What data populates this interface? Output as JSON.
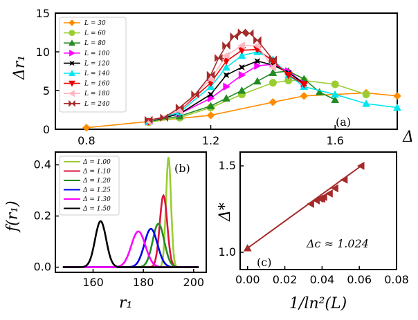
{
  "chart_data": [
    {
      "panel": "(a)",
      "type": "line",
      "xlabel": "Δ",
      "ylabel": "Δr₁",
      "xlim": [
        0.7,
        1.8
      ],
      "ylim": [
        0,
        15
      ],
      "xticks": [
        "0.8",
        "1.2",
        "1.6"
      ],
      "yticks": [
        "0",
        "5",
        "10",
        "15"
      ],
      "legend_position": "top-left",
      "series": [
        {
          "name": "L = 30",
          "color": "#ff8c00",
          "marker": "diamond",
          "x": [
            0.8,
            1.0,
            1.2,
            1.4,
            1.5,
            1.7,
            1.8
          ],
          "y": [
            0.2,
            1.0,
            1.8,
            3.5,
            4.3,
            4.7,
            4.3
          ]
        },
        {
          "name": "L = 60",
          "color": "#9acd32",
          "marker": "circle",
          "x": [
            1.0,
            1.1,
            1.2,
            1.3,
            1.4,
            1.45,
            1.5,
            1.6,
            1.7
          ],
          "y": [
            0.9,
            1.5,
            2.8,
            4.5,
            6.0,
            6.3,
            6.3,
            5.8,
            4.5
          ]
        },
        {
          "name": "L = 80",
          "color": "#228b22",
          "marker": "triangle-up",
          "x": [
            1.0,
            1.1,
            1.2,
            1.25,
            1.3,
            1.35,
            1.4,
            1.45,
            1.5,
            1.55,
            1.6
          ],
          "y": [
            1.0,
            1.7,
            3.0,
            4.0,
            5.0,
            6.2,
            7.3,
            7.5,
            6.5,
            4.8,
            3.8
          ]
        },
        {
          "name": "L = 100",
          "color": "#ff00ff",
          "marker": "triangle-right",
          "x": [
            1.0,
            1.1,
            1.2,
            1.25,
            1.3,
            1.35,
            1.4,
            1.45,
            1.5
          ],
          "y": [
            1.0,
            2.0,
            4.0,
            5.5,
            7.0,
            8.2,
            8.4,
            7.5,
            5.9
          ]
        },
        {
          "name": "L = 120",
          "color": "#000000",
          "marker": "star",
          "x": [
            1.0,
            1.1,
            1.2,
            1.25,
            1.3,
            1.35,
            1.4,
            1.45,
            1.5
          ],
          "y": [
            1.0,
            2.0,
            4.5,
            7.0,
            8.0,
            8.8,
            8.3,
            7.3,
            5.9
          ]
        },
        {
          "name": "L = 140",
          "color": "#00e5ee",
          "marker": "triangle-up",
          "x": [
            1.0,
            1.1,
            1.2,
            1.25,
            1.3,
            1.35,
            1.4,
            1.45,
            1.5,
            1.6,
            1.7,
            1.8
          ],
          "y": [
            1.0,
            2.2,
            5.5,
            8.0,
            9.5,
            10.0,
            9.0,
            7.0,
            5.5,
            4.5,
            3.3,
            2.8
          ]
        },
        {
          "name": "L = 160",
          "color": "#ee0000",
          "marker": "triangle-down",
          "x": [
            1.0,
            1.1,
            1.2,
            1.25,
            1.3,
            1.35,
            1.4,
            1.45,
            1.5
          ],
          "y": [
            1.0,
            2.4,
            6.0,
            8.8,
            10.2,
            10.3,
            8.8,
            7.0,
            5.8
          ]
        },
        {
          "name": "L = 180",
          "color": "#ffb6c1",
          "marker": "triangle-left",
          "x": [
            1.0,
            1.1,
            1.2,
            1.25,
            1.3,
            1.35,
            1.4
          ],
          "y": [
            1.0,
            2.4,
            6.5,
            9.5,
            10.8,
            10.8,
            8.0
          ]
        },
        {
          "name": "L = 240",
          "color": "#a52a2a",
          "marker": "bowtie",
          "x": [
            1.0,
            1.05,
            1.1,
            1.15,
            1.2,
            1.225,
            1.25,
            1.275,
            1.3,
            1.325,
            1.35,
            1.4
          ],
          "y": [
            1.2,
            1.5,
            2.8,
            4.5,
            7.0,
            9.2,
            10.8,
            12.0,
            12.5,
            12.4,
            11.5,
            9.0
          ]
        }
      ]
    },
    {
      "panel": "(b)",
      "type": "line",
      "xlabel": "r₁",
      "ylabel": "f(r₁)",
      "xlim": [
        145,
        205
      ],
      "ylim": [
        -0.02,
        0.45
      ],
      "xticks": [
        "160",
        "180",
        "200"
      ],
      "yticks": [
        "0.0",
        "0.2",
        "0.4"
      ],
      "legend_position": "top-left",
      "series": [
        {
          "name": "Δ = 1.00",
          "color": "#9acd32",
          "mean": 190,
          "peak": 0.43,
          "sigma": 1.0
        },
        {
          "name": "Δ = 1.10",
          "color": "#dc143c",
          "mean": 188,
          "peak": 0.28,
          "sigma": 1.5
        },
        {
          "name": "Δ = 1.20",
          "color": "#228b22",
          "mean": 186,
          "peak": 0.17,
          "sigma": 2.3
        },
        {
          "name": "Δ = 1.25",
          "color": "#0000ee",
          "mean": 183,
          "peak": 0.15,
          "sigma": 2.6
        },
        {
          "name": "Δ = 1.30",
          "color": "#ff00ff",
          "mean": 178,
          "peak": 0.14,
          "sigma": 2.8
        },
        {
          "name": "Δ = 1.50",
          "color": "#000000",
          "mean": 163,
          "peak": 0.18,
          "sigma": 2.2
        }
      ]
    },
    {
      "panel": "(c)",
      "type": "scatter",
      "xlabel": "1/ln²(L)",
      "ylabel": "Δ*",
      "xlim": [
        -0.004,
        0.08
      ],
      "ylim": [
        0.9,
        1.58
      ],
      "xticks": [
        "0.00",
        "0.02",
        "0.04",
        "0.06",
        "0.08"
      ],
      "yticks": [
        "1.0",
        "1.5"
      ],
      "annotation": "Δc ≈ 1.024",
      "points": {
        "x": [
          0.0,
          0.034,
          0.037,
          0.039,
          0.04,
          0.041,
          0.044,
          0.047,
          0.052,
          0.061
        ],
        "y": [
          1.024,
          1.28,
          1.3,
          1.31,
          1.31,
          1.32,
          1.34,
          1.37,
          1.42,
          1.5
        ]
      },
      "fit": {
        "x": [
          0.0,
          0.061
        ],
        "y": [
          1.024,
          1.5
        ]
      },
      "color": "#a52a2a"
    }
  ]
}
